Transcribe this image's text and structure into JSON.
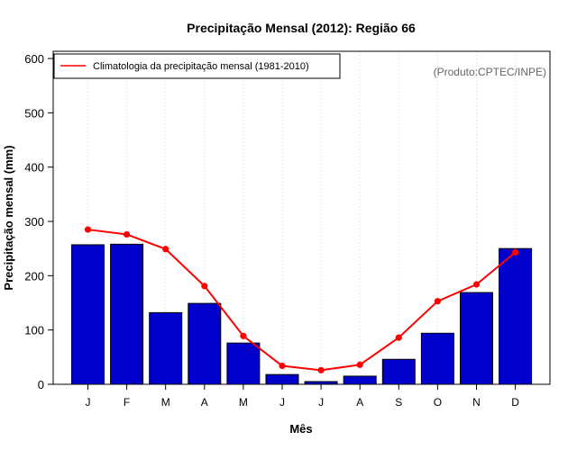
{
  "chart_data": {
    "type": "bar",
    "title": "Precipitação Mensal (2012): Região 66",
    "xlabel": "Mês",
    "ylabel": "Precipitação mensal (mm)",
    "ylim": [
      0,
      600
    ],
    "yticks": [
      0,
      100,
      200,
      300,
      400,
      500,
      600
    ],
    "categories": [
      "J",
      "F",
      "M",
      "A",
      "M",
      "J",
      "J",
      "A",
      "S",
      "O",
      "N",
      "D"
    ],
    "series": [
      {
        "name": "Precipitação mensal 2012",
        "type": "bar",
        "color": "#0000CD",
        "values": [
          257,
          258,
          132,
          149,
          76,
          18,
          5,
          15,
          46,
          94,
          169,
          250
        ]
      },
      {
        "name": "Climatologia da precipitação mensal (1981-2010)",
        "type": "line",
        "color": "#FF0000",
        "values": [
          285,
          276,
          249,
          181,
          89,
          34,
          26,
          36,
          86,
          153,
          184,
          243
        ]
      }
    ],
    "legend": {
      "position": "top-left",
      "entries": [
        "Climatologia da precipitação mensal (1981-2010)"
      ]
    },
    "annotation": "(Produto:CPTEC/INPE)",
    "grid": "vertical dotted"
  }
}
